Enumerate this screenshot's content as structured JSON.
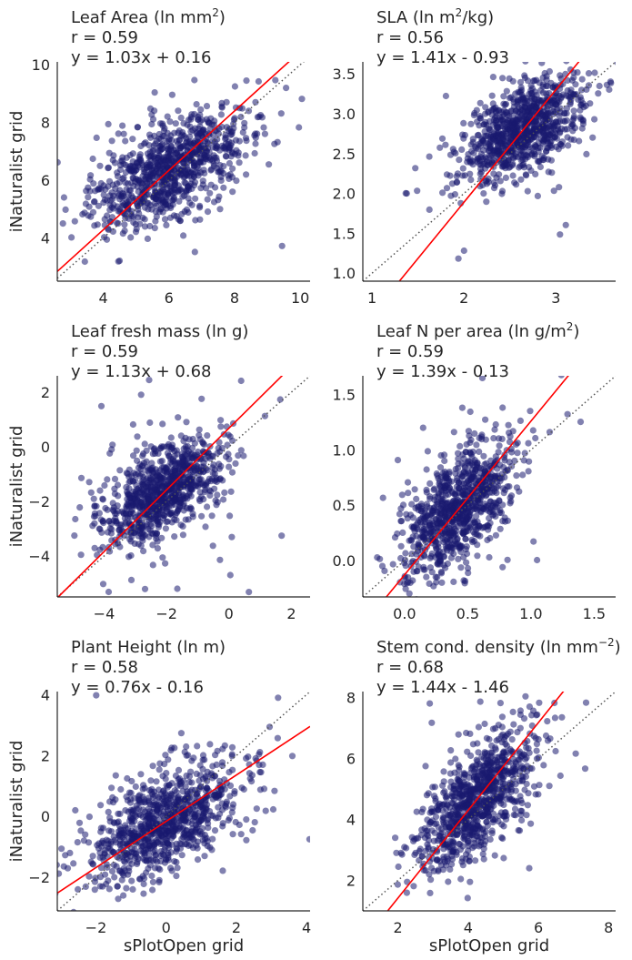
{
  "figure": {
    "xlabel": "sPlotOpen grid",
    "ylabel": "iNaturalist grid"
  },
  "chart_data": [
    {
      "type": "scatter",
      "title": "Leaf Area (ln mm²)",
      "title_main": "Leaf Area (ln mm",
      "title_sup": "2",
      "title_tail": ")",
      "r_text": "r = 0.59",
      "eq_text": "y = 1.03x + 0.16",
      "xlim": [
        2.6,
        10.3
      ],
      "ylim": [
        2.5,
        10.1
      ],
      "xticks": [
        4,
        6,
        8,
        10
      ],
      "yticks": [
        4,
        6,
        8,
        10
      ],
      "ylabel": "iNaturalist grid",
      "xlabel": "",
      "fit": {
        "slope": 1.03,
        "intercept": 0.16
      },
      "cloud": {
        "n": 900,
        "mx": 6.1,
        "my": 6.4,
        "sx": 1.2,
        "sy": 1.0,
        "rho": 0.59,
        "tail": 0.05
      },
      "scatter_color": "#191970",
      "fit_color": "#ff0000",
      "identity_color": "#555555"
    },
    {
      "type": "scatter",
      "title": "SLA (ln m²/kg)",
      "title_main": "SLA (ln m",
      "title_sup": "2",
      "title_tail": "/kg)",
      "r_text": "r = 0.56",
      "eq_text": "y = 1.41x - 0.93",
      "xlim": [
        0.9,
        3.65
      ],
      "ylim": [
        0.9,
        3.65
      ],
      "xticks": [
        1,
        2,
        3
      ],
      "yticks": [
        1.0,
        1.5,
        2.0,
        2.5,
        3.0,
        3.5
      ],
      "ytick_labels": [
        "1.0",
        "1.5",
        "2.0",
        "2.5",
        "3.0",
        "3.5"
      ],
      "ylabel": "",
      "xlabel": "",
      "fit": {
        "slope": 1.41,
        "intercept": -0.93
      },
      "cloud": {
        "n": 900,
        "mx": 2.65,
        "my": 2.8,
        "sx": 0.35,
        "sy": 0.35,
        "rho": 0.56,
        "tail": 0.04
      },
      "scatter_color": "#191970",
      "fit_color": "#ff0000",
      "identity_color": "#555555"
    },
    {
      "type": "scatter",
      "title": "Leaf fresh mass (ln g)",
      "title_main": "Leaf fresh mass (ln g)",
      "title_sup": "",
      "title_tail": "",
      "r_text": "r = 0.59",
      "eq_text": "y = 1.13x + 0.68",
      "xlim": [
        -5.5,
        2.6
      ],
      "ylim": [
        -5.5,
        2.6
      ],
      "xticks": [
        -4,
        -2,
        0,
        2
      ],
      "yticks": [
        -4,
        -2,
        0,
        2
      ],
      "ylabel": "iNaturalist grid",
      "xlabel": "",
      "fit": {
        "slope": 1.13,
        "intercept": 0.68
      },
      "cloud": {
        "n": 900,
        "mx": -2.1,
        "my": -1.6,
        "sx": 1.0,
        "sy": 1.0,
        "rho": 0.59,
        "tail": 0.05
      },
      "scatter_color": "#191970",
      "fit_color": "#ff0000",
      "identity_color": "#555555"
    },
    {
      "type": "scatter",
      "title": "Leaf N per area (ln g/m²)",
      "title_main": "Leaf N per area (ln g/m",
      "title_sup": "2",
      "title_tail": ")",
      "r_text": "r = 0.59",
      "eq_text": "y = 1.39x - 0.13",
      "xlim": [
        -0.33,
        1.67
      ],
      "ylim": [
        -0.33,
        1.67
      ],
      "xticks": [
        0.0,
        0.5,
        1.0,
        1.5
      ],
      "yticks": [
        0.0,
        0.5,
        1.0,
        1.5
      ],
      "xtick_labels": [
        "0.0",
        "0.5",
        "1.0",
        "1.5"
      ],
      "ytick_labels": [
        "0.0",
        "0.5",
        "1.0",
        "1.5"
      ],
      "ylabel": "",
      "xlabel": "",
      "fit": {
        "slope": 1.39,
        "intercept": -0.13
      },
      "cloud": {
        "n": 900,
        "mx": 0.42,
        "my": 0.45,
        "sx": 0.22,
        "sy": 0.3,
        "rho": 0.59,
        "tail": 0.05
      },
      "scatter_color": "#191970",
      "fit_color": "#ff0000",
      "identity_color": "#555555"
    },
    {
      "type": "scatter",
      "title": "Plant Height (ln m)",
      "title_main": "Plant Height (ln m)",
      "title_sup": "",
      "title_tail": "",
      "r_text": "r = 0.58",
      "eq_text": "y = 0.76x - 0.16",
      "xlim": [
        -3.1,
        4.1
      ],
      "ylim": [
        -3.1,
        4.1
      ],
      "xticks": [
        -2,
        0,
        2,
        4
      ],
      "yticks": [
        -2,
        0,
        2,
        4
      ],
      "ylabel": "iNaturalist grid",
      "xlabel": "sPlotOpen grid",
      "fit": {
        "slope": 0.76,
        "intercept": -0.16
      },
      "cloud": {
        "n": 900,
        "mx": 0.0,
        "my": -0.15,
        "sx": 1.1,
        "sy": 1.0,
        "rho": 0.58,
        "tail": 0.04
      },
      "scatter_color": "#191970",
      "fit_color": "#ff0000",
      "identity_color": "#555555"
    },
    {
      "type": "scatter",
      "title": "Stem cond. density (ln mm⁻²)",
      "title_main": "Stem cond. density (ln mm",
      "title_sup": "−2",
      "title_tail": ")",
      "r_text": "r = 0.68",
      "eq_text": "y = 1.44x - 1.46",
      "xlim": [
        1.0,
        8.2
      ],
      "ylim": [
        1.0,
        8.2
      ],
      "xticks": [
        2,
        4,
        6,
        8
      ],
      "yticks": [
        2,
        4,
        6,
        8
      ],
      "ylabel": "",
      "xlabel": "sPlotOpen grid",
      "fit": {
        "slope": 1.44,
        "intercept": -1.46
      },
      "cloud": {
        "n": 900,
        "mx": 4.3,
        "my": 4.7,
        "sx": 0.85,
        "sy": 1.15,
        "rho": 0.68,
        "tail": 0.04
      },
      "scatter_color": "#191970",
      "fit_color": "#ff0000",
      "identity_color": "#555555"
    }
  ]
}
